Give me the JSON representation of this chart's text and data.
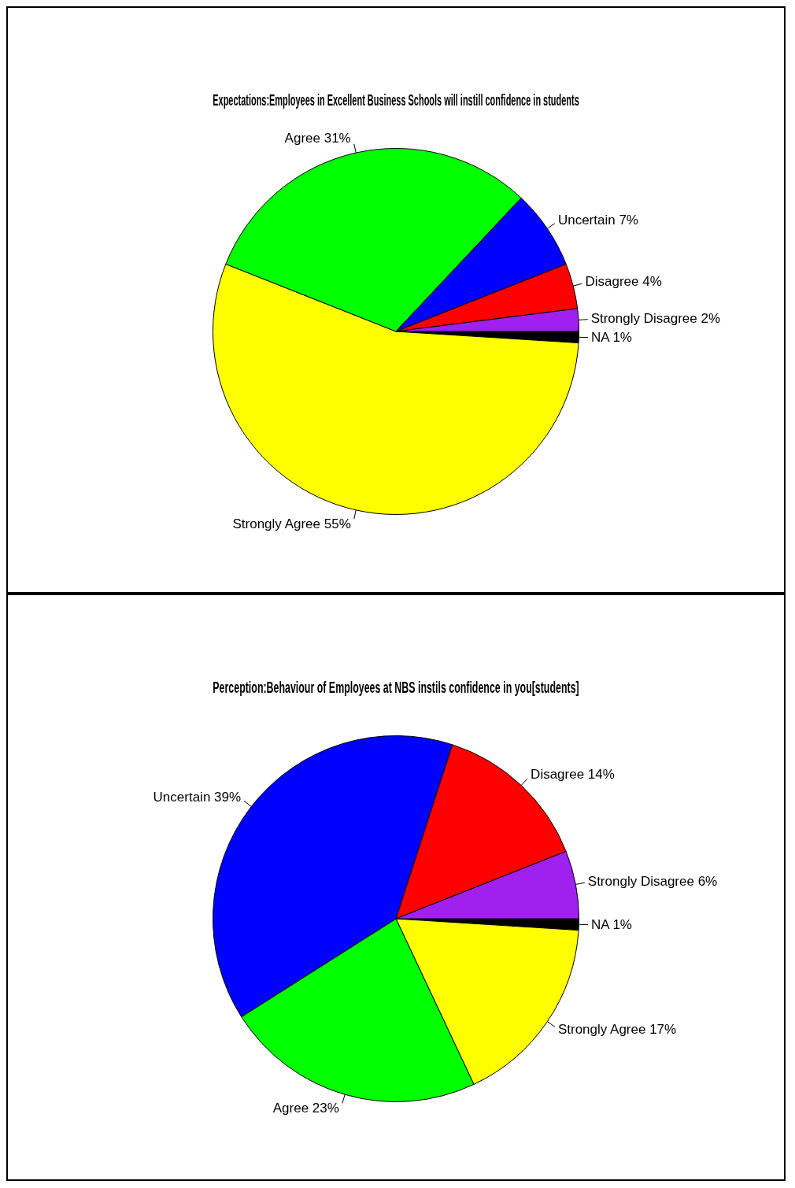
{
  "chart_data": [
    {
      "type": "pie",
      "title": "Expectations:Employees in Excellent Business Schools will instill confidence in students",
      "categories": [
        "NA 1%",
        "Strongly Agree 55%",
        "Agree 31%",
        "Uncertain 7%",
        "Disagree 4%",
        "Strongly Disagree 2%"
      ],
      "values": [
        1,
        55,
        31,
        7,
        4,
        2
      ],
      "colors": [
        "#000000",
        "#ffff00",
        "#00ff00",
        "#0000ff",
        "#ff0000",
        "#a020f0"
      ],
      "legend": false
    },
    {
      "type": "pie",
      "title": "Perception:Behaviour of Employees at NBS instils confidence in you[students]",
      "categories": [
        "NA 1%",
        "Strongly Agree 17%",
        "Agree 23%",
        "Uncertain 39%",
        "Disagree 14%",
        "Strongly Disagree 6%"
      ],
      "values": [
        1,
        17,
        23,
        39,
        14,
        6
      ],
      "colors": [
        "#000000",
        "#ffff00",
        "#00ff00",
        "#0000ff",
        "#ff0000",
        "#a020f0"
      ],
      "legend": false
    }
  ]
}
